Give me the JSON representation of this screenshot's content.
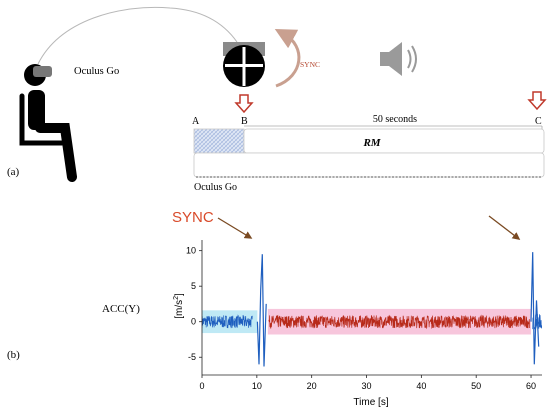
{
  "panel_a": {
    "label": "(a)",
    "device_label": "Oculus Go",
    "sync_label": "SYNC",
    "marker_A": "A",
    "marker_B": "B",
    "marker_C": "C",
    "duration_label": "50 seconds",
    "rm_label": "RM",
    "bottom_label": "Oculus Go",
    "colors": {
      "arrow_red": "#c0392b",
      "sync_text": "#b4462e",
      "hatch_blue": "#b9c8e6",
      "speaker_gray": "#9a9a9a",
      "pictogram": "#000000"
    },
    "icons": [
      "person-seated-icon",
      "vr-headset-icon",
      "sync-device-icon",
      "sync-curved-arrow-icon",
      "speaker-icon",
      "down-arrow-icon"
    ]
  },
  "panel_b": {
    "label": "(b)",
    "sync_callout": "SYNC",
    "signal_label": "ACC(Y)",
    "colors": {
      "sync_callout": "#d94a2a",
      "callout_arrow": "#7a4a22",
      "blue_trace": "#1f5fbf",
      "red_trace": "#b82a1a",
      "blue_band": "#bfe9f5",
      "pink_band": "#f7c6dc"
    }
  },
  "chart_data": {
    "type": "line",
    "title": "",
    "xlabel": "Time [s]",
    "ylabel": "[m/s²]",
    "ylabel_base": "[m/s",
    "ylabel_sup": "2",
    "ylabel_close": "]",
    "xlim": [
      0,
      62
    ],
    "ylim": [
      -7.5,
      11.5
    ],
    "x_ticks": [
      0,
      10,
      20,
      30,
      40,
      50,
      60
    ],
    "y_ticks": [
      -5,
      0,
      5,
      10
    ],
    "grid": false,
    "series": [
      {
        "color": "#1f5fbf",
        "segments": [
          {
            "x_range": [
              0,
              9.2
            ],
            "noise_amplitude": 0.9
          },
          {
            "x_range": [
              60.3,
              62
            ],
            "noise_amplitude": 1.1
          }
        ],
        "spikes": [
          {
            "x": 10.4,
            "y": -6.0
          },
          {
            "x": 10.7,
            "y": 4.5
          },
          {
            "x": 11.0,
            "y": 9.5
          },
          {
            "x": 11.3,
            "y": -6.3
          },
          {
            "x": 11.7,
            "y": 2.5
          },
          {
            "x": 60.3,
            "y": 9.8
          },
          {
            "x": 60.6,
            "y": -6.0
          },
          {
            "x": 61.0,
            "y": 3.0
          },
          {
            "x": 61.4,
            "y": -3.5
          }
        ]
      },
      {
        "color": "#b82a1a",
        "segments": [
          {
            "x_range": [
              12.2,
              59.8
            ],
            "noise_amplitude": 0.9
          }
        ]
      }
    ],
    "bands": [
      {
        "x_range": [
          0,
          10.1
        ],
        "y_range": [
          -1.6,
          1.6
        ],
        "color": "#bfe9f5"
      },
      {
        "x_range": [
          12.0,
          60.0
        ],
        "y_range": [
          -1.8,
          1.8
        ],
        "color": "#f7c6dc"
      }
    ]
  }
}
